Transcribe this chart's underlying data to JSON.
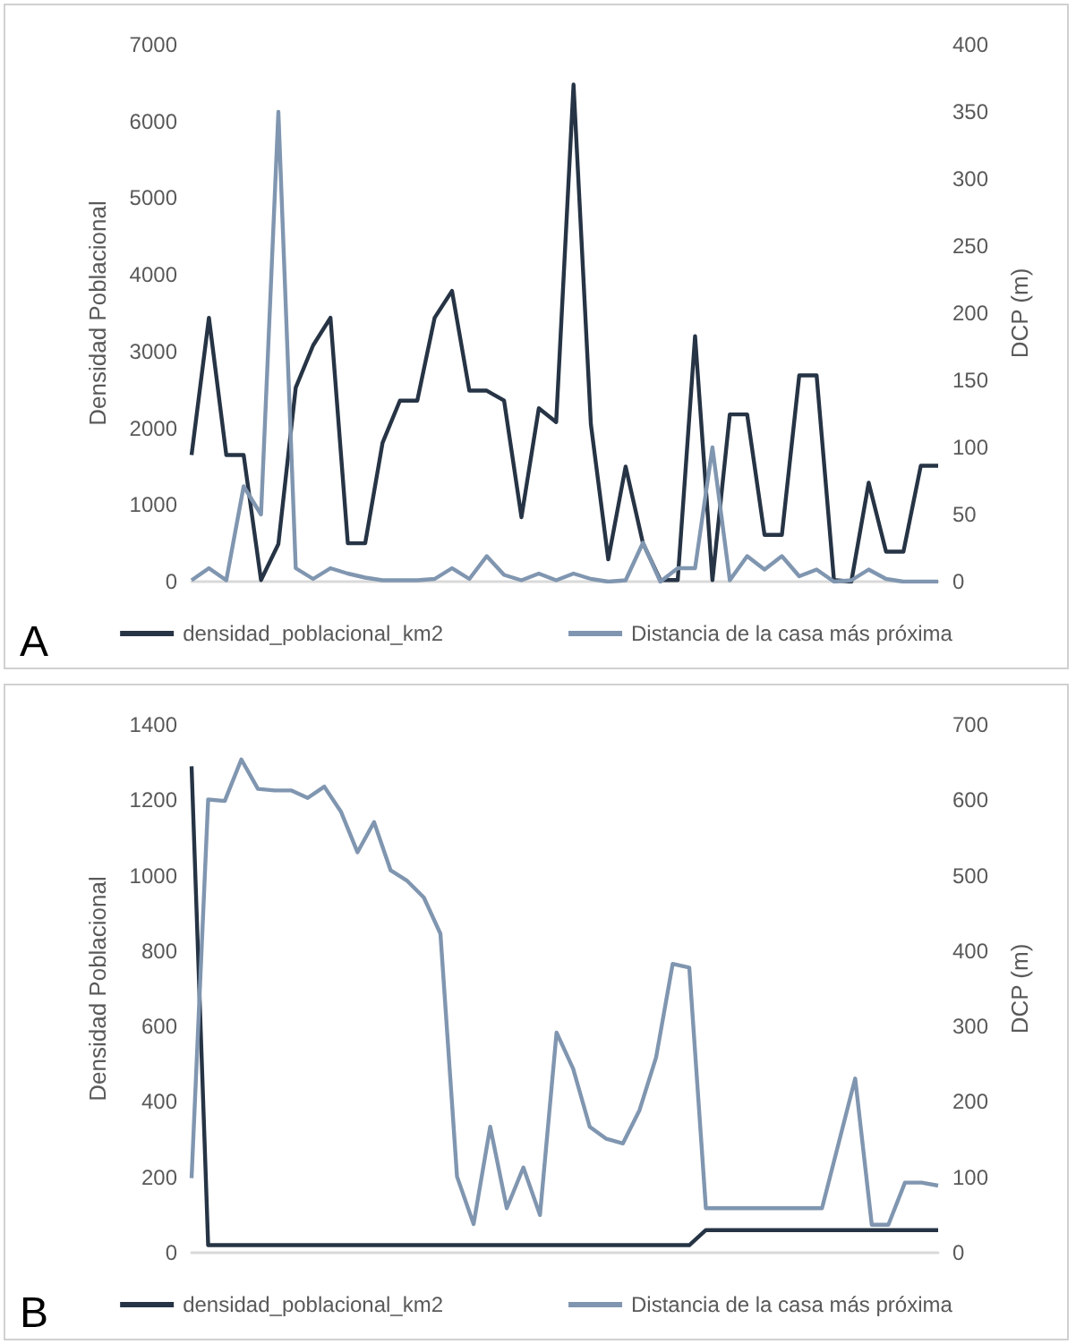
{
  "chart_data": [
    {
      "type": "line",
      "ylabel": "Densidad Poblacional",
      "y2label": "DCP (m)",
      "annotations": [
        "A"
      ],
      "legend": "bottom",
      "marker": "none",
      "categories": [
        null,
        null,
        null,
        null,
        null,
        null,
        null,
        null,
        null,
        null,
        null,
        null,
        null,
        null,
        null,
        null,
        null,
        null,
        null,
        null,
        null,
        null,
        null,
        null,
        null,
        null,
        null,
        null,
        null,
        null,
        null,
        null,
        null,
        null,
        null,
        null,
        null,
        null,
        null,
        null,
        null,
        null,
        null,
        null
      ],
      "ylim": [
        0,
        7000
      ],
      "yticks": [
        0,
        1000,
        2000,
        3000,
        4000,
        5000,
        6000,
        7000
      ],
      "y2lim": [
        0,
        400
      ],
      "y2ticks": [
        0,
        50,
        100,
        150,
        200,
        250,
        300,
        350,
        400
      ],
      "series": [
        {
          "name": "densidad_poblacional_km2",
          "color": "#263445",
          "values": [
            1650,
            3440,
            1650,
            1650,
            20,
            490,
            2530,
            3080,
            3440,
            500,
            500,
            1810,
            2360,
            2360,
            3440,
            3790,
            2490,
            2490,
            2360,
            840,
            2260,
            2080,
            6480,
            2050,
            290,
            1500,
            500,
            20,
            20,
            3200,
            20,
            2180,
            2180,
            610,
            610,
            2690,
            2690,
            20,
            0,
            1290,
            390,
            390,
            1510,
            1510
          ]
        },
        {
          "name": "Distancia de la casa más próxima",
          "color": "#8096b0",
          "axis": "y2",
          "values": [
            1,
            10,
            1,
            71,
            50,
            350,
            10,
            2,
            10,
            6,
            3,
            1,
            1,
            1,
            2,
            10,
            2,
            19,
            5,
            1,
            6,
            1,
            6,
            2,
            0,
            1,
            29,
            0,
            10,
            10,
            100,
            1,
            19,
            9,
            19,
            4,
            9,
            0,
            1,
            9,
            2,
            0,
            0,
            0
          ]
        }
      ]
    },
    {
      "type": "line",
      "ylabel": "Densidad Poblacional",
      "y2label": "DCP (m)",
      "annotations": [
        "B"
      ],
      "legend": "bottom",
      "marker": "none",
      "categories": [
        null,
        null,
        null,
        null,
        null,
        null,
        null,
        null,
        null,
        null,
        null,
        null,
        null,
        null,
        null,
        null,
        null,
        null,
        null,
        null,
        null,
        null,
        null,
        null,
        null,
        null,
        null,
        null,
        null,
        null,
        null,
        null,
        null,
        null,
        null,
        null,
        null,
        null,
        null,
        null,
        null,
        null,
        null,
        null,
        null,
        null
      ],
      "ylim": [
        0,
        1400
      ],
      "yticks": [
        0,
        200,
        400,
        600,
        800,
        1000,
        1200,
        1400
      ],
      "y2lim": [
        0,
        700
      ],
      "y2ticks": [
        0,
        100,
        200,
        300,
        400,
        500,
        600,
        700
      ],
      "series": [
        {
          "name": "densidad_poblacional_km2",
          "color": "#263445",
          "values": [
            1290,
            20,
            20,
            20,
            20,
            20,
            20,
            20,
            20,
            20,
            20,
            20,
            20,
            20,
            20,
            20,
            20,
            20,
            20,
            20,
            20,
            20,
            20,
            20,
            20,
            20,
            20,
            20,
            20,
            20,
            20,
            60,
            60,
            60,
            60,
            60,
            60,
            60,
            60,
            60,
            60,
            60,
            60,
            60,
            60,
            60
          ]
        },
        {
          "name": "Distancia de la casa más próxima",
          "color": "#8096b0",
          "axis": "y2",
          "values": [
            99,
            601,
            599,
            654,
            615,
            613,
            613,
            603,
            618,
            585,
            531,
            571,
            507,
            493,
            471,
            423,
            101,
            38,
            167,
            59,
            113,
            50,
            292,
            244,
            167,
            151,
            145,
            189,
            259,
            383,
            378,
            59,
            59,
            59,
            59,
            59,
            59,
            59,
            59,
            145,
            231,
            37,
            37,
            93,
            93,
            89
          ]
        }
      ]
    }
  ]
}
